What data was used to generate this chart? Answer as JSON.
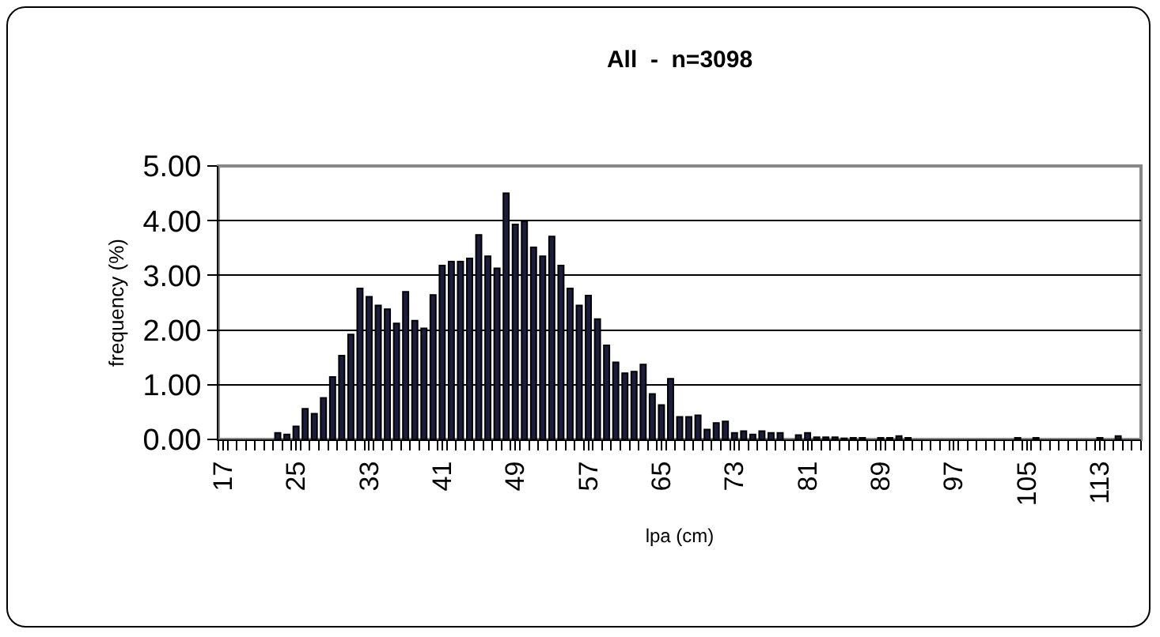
{
  "chart_data": {
    "type": "bar",
    "title": "All  -  n=3098",
    "xlabel": "lpa (cm)",
    "ylabel": "frequency (%)",
    "categories": [
      "17",
      null,
      null,
      null,
      null,
      null,
      null,
      null,
      "25",
      null,
      null,
      null,
      null,
      null,
      null,
      null,
      "33",
      null,
      null,
      null,
      null,
      null,
      null,
      null,
      "41",
      null,
      null,
      null,
      null,
      null,
      null,
      null,
      "49",
      null,
      null,
      null,
      null,
      null,
      null,
      null,
      "57",
      null,
      null,
      null,
      null,
      null,
      null,
      null,
      "65",
      null,
      null,
      null,
      null,
      null,
      null,
      null,
      "73",
      null,
      null,
      null,
      null,
      null,
      null,
      null,
      "81",
      null,
      null,
      null,
      null,
      null,
      null,
      null,
      "89",
      null,
      null,
      null,
      null,
      null,
      null,
      null,
      "97",
      null,
      null,
      null,
      null,
      null,
      null,
      null,
      "105",
      null,
      null,
      null,
      null,
      null,
      null,
      null,
      "113",
      null,
      null,
      null,
      null
    ],
    "values": [
      0,
      0,
      0,
      0,
      0,
      0,
      0.12,
      0.09,
      0.24,
      0.56,
      0.47,
      0.76,
      1.14,
      1.53,
      1.92,
      2.76,
      2.61,
      2.45,
      2.38,
      2.12,
      2.7,
      2.17,
      2.03,
      2.64,
      3.18,
      3.25,
      3.25,
      3.31,
      3.74,
      3.35,
      3.13,
      4.5,
      3.93,
      3.99,
      3.51,
      3.35,
      3.71,
      3.18,
      2.76,
      2.45,
      2.63,
      2.2,
      1.72,
      1.41,
      1.21,
      1.24,
      1.37,
      0.83,
      0.63,
      1.11,
      0.41,
      0.41,
      0.44,
      0.18,
      0.3,
      0.33,
      0.12,
      0.15,
      0.09,
      0.15,
      0.12,
      0.12,
      0,
      0.08,
      0.12,
      0.04,
      0.04,
      0.04,
      0.02,
      0.03,
      0.03,
      0,
      0.03,
      0.03,
      0.06,
      0.03,
      0,
      0,
      0,
      0,
      0,
      0,
      0,
      0,
      0,
      0,
      0,
      0.03,
      0,
      0.03,
      0,
      0,
      0,
      0,
      0,
      0,
      0.03,
      0,
      0.06,
      0,
      0
    ],
    "color": "#1c1c3c",
    "ylim": [
      0,
      5
    ],
    "yticks": [
      {
        "value": 0,
        "label": "0.00"
      },
      {
        "value": 1,
        "label": "1.00"
      },
      {
        "value": 2,
        "label": "2.00"
      },
      {
        "value": 3,
        "label": "3.00"
      },
      {
        "value": 4,
        "label": "4.00"
      },
      {
        "value": 5,
        "label": "5.00"
      }
    ],
    "grid": "y",
    "legend": false
  }
}
